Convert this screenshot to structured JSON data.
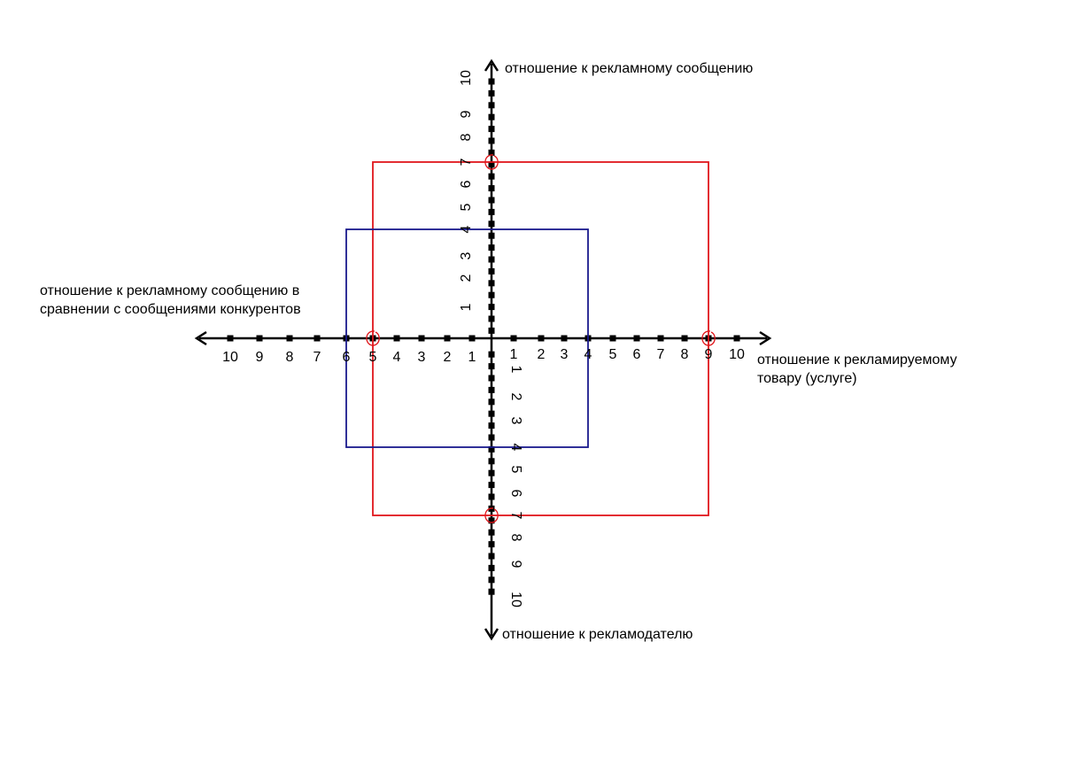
{
  "axes": {
    "top": "отношение к рекламному сообщению",
    "bottom": "отношение к рекламодателю",
    "left": [
      "отношение к рекламному сообщению в",
      "сравнении с сообщениями конкурентов"
    ],
    "right": [
      "отношение к рекламируемому",
      "товару (услуге)"
    ]
  },
  "ticks": {
    "left": [
      "10",
      "9",
      "8",
      "7",
      "6",
      "5",
      "4",
      "3",
      "2",
      "1"
    ],
    "right": [
      "1",
      "2",
      "3",
      "4",
      "5",
      "6",
      "7",
      "8",
      "9",
      "10"
    ],
    "up": [
      "1",
      "2",
      "3",
      "4",
      "5",
      "6",
      "7",
      "8",
      "9",
      "10"
    ],
    "down": [
      "1",
      "2",
      "3",
      "4",
      "5",
      "6",
      "7",
      "8",
      "9",
      "10"
    ]
  },
  "shapes": {
    "red_rectangle": {
      "color": "#e0161b",
      "left": 5,
      "right": 9,
      "up": 7,
      "down": 7
    },
    "blue_rectangle": {
      "color": "#1a1a8c",
      "left": 6,
      "right": 4,
      "up": 4,
      "down": 4
    },
    "red_markers": [
      {
        "axis": "left",
        "value": 5
      },
      {
        "axis": "right",
        "value": 9
      },
      {
        "axis": "up",
        "value": 7
      },
      {
        "axis": "down",
        "value": 7
      }
    ]
  },
  "colors": {
    "axis": "#000000",
    "red": "#e0161b",
    "blue": "#1a1a8c"
  }
}
